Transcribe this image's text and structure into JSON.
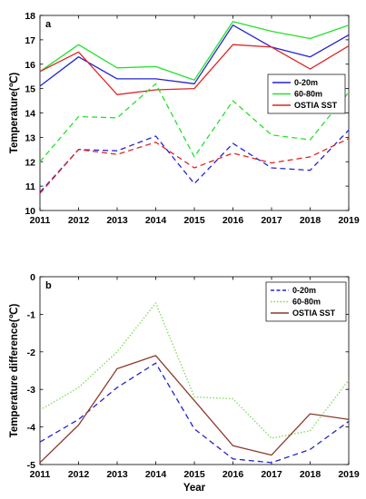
{
  "chart_data": [
    {
      "type": "line",
      "panel_label": "a",
      "xlabel": "",
      "ylabel": "Temperature(℃)",
      "xlim": [
        2011,
        2019
      ],
      "ylim": [
        10,
        18
      ],
      "x": [
        2011,
        2012,
        2013,
        2014,
        2015,
        2016,
        2017,
        2018,
        2019
      ],
      "x_ticks": [
        "2011",
        "2012",
        "2013",
        "2014",
        "2015",
        "2016",
        "2017",
        "2018",
        "2019"
      ],
      "y_ticks": [
        "10",
        "11",
        "12",
        "13",
        "14",
        "15",
        "16",
        "17",
        "18"
      ],
      "y_tick_values": [
        10,
        11,
        12,
        13,
        14,
        15,
        16,
        17,
        18
      ],
      "grid": false,
      "legend_position": "right",
      "series": [
        {
          "name": "0-20m",
          "color": "#2323d2",
          "dash": "solid",
          "legend": true,
          "values": [
            15.1,
            16.3,
            15.4,
            15.4,
            15.2,
            17.6,
            16.7,
            16.3,
            17.2
          ]
        },
        {
          "name": "60-80m",
          "color": "#22e22a",
          "dash": "solid",
          "legend": true,
          "values": [
            15.7,
            16.8,
            15.85,
            15.9,
            15.35,
            17.75,
            17.35,
            17.05,
            17.6
          ]
        },
        {
          "name": "OSTIA SST",
          "color": "#e12424",
          "dash": "solid",
          "legend": true,
          "values": [
            15.7,
            16.5,
            14.75,
            14.95,
            15.0,
            16.8,
            16.7,
            15.8,
            16.75
          ]
        },
        {
          "color": "#2323d2",
          "dash": "dashed",
          "legend": false,
          "values": [
            10.75,
            12.5,
            12.45,
            13.05,
            11.1,
            12.75,
            11.75,
            11.65,
            13.3
          ]
        },
        {
          "color": "#22e22a",
          "dash": "dashed",
          "legend": false,
          "values": [
            12.0,
            13.85,
            13.8,
            15.2,
            12.2,
            14.5,
            13.1,
            12.9,
            14.85
          ]
        },
        {
          "color": "#e12424",
          "dash": "dashed",
          "legend": false,
          "values": [
            10.7,
            12.5,
            12.3,
            12.8,
            11.75,
            12.35,
            11.95,
            12.2,
            12.95
          ]
        }
      ]
    },
    {
      "type": "line",
      "panel_label": "b",
      "xlabel": "Year",
      "ylabel": "Temperature difference(℃)",
      "xlim": [
        2011,
        2019
      ],
      "ylim": [
        -5,
        0
      ],
      "x": [
        2011,
        2012,
        2013,
        2014,
        2015,
        2016,
        2017,
        2018,
        2019
      ],
      "x_ticks": [
        "2011",
        "2012",
        "2013",
        "2014",
        "2015",
        "2016",
        "2017",
        "2018",
        "2019"
      ],
      "y_ticks": [
        "-5",
        "-4",
        "-3",
        "-2",
        "-1",
        "0"
      ],
      "y_tick_values": [
        -5,
        -4,
        -3,
        -2,
        -1,
        0
      ],
      "grid": false,
      "legend_position": "top-right",
      "series": [
        {
          "name": "0-20m",
          "color": "#2323d2",
          "dash": "dashed",
          "legend": true,
          "values": [
            -4.4,
            -3.8,
            -2.95,
            -2.3,
            -4.05,
            -4.85,
            -4.95,
            -4.6,
            -3.85
          ]
        },
        {
          "name": "60-80m",
          "color": "#7ed957",
          "dash": "dotted",
          "legend": true,
          "values": [
            -3.55,
            -2.95,
            -2.0,
            -0.7,
            -3.2,
            -3.25,
            -4.3,
            -4.1,
            -2.75
          ]
        },
        {
          "name": "OSTIA SST",
          "color": "#8b3a2e",
          "dash": "solid",
          "legend": true,
          "values": [
            -4.95,
            -3.95,
            -2.45,
            -2.1,
            -3.3,
            -4.5,
            -4.75,
            -3.65,
            -3.8
          ]
        }
      ]
    }
  ]
}
